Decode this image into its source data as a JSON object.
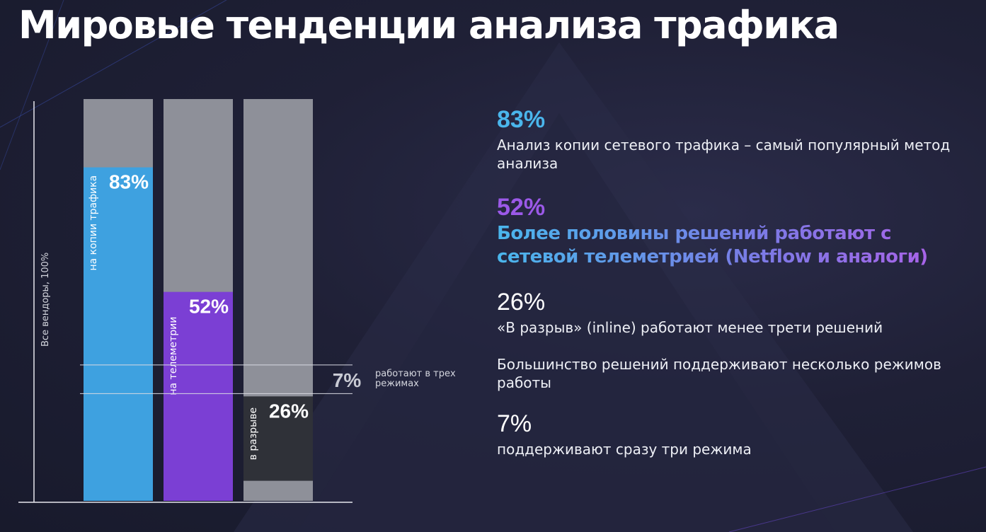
{
  "title": "Мировые тенденции анализа трафика",
  "colors": {
    "blue": "#3ea1e0",
    "purple": "#7b3fd4",
    "grey": "#8e9099",
    "dark_bar": "#2f3138",
    "accent_blue": "#4ab6ec",
    "accent_purple": "#9b59e8"
  },
  "chart_data": {
    "type": "bar",
    "ylabel": "Все вендоры, 100%",
    "ylim": [
      0,
      100
    ],
    "categories": [
      "на копии трафика",
      "на телеметрии",
      "в разрыве"
    ],
    "values": [
      83,
      52,
      26
    ],
    "value_labels": [
      "83%",
      "52%",
      "26%"
    ],
    "band": {
      "from": 26,
      "to": 34,
      "value": 7,
      "label": "7%",
      "annotation": "работают в трех режимах"
    }
  },
  "stats": [
    {
      "pct": "83%",
      "text": "Анализ копии сетевого трафика – самый популярный метод анализа"
    },
    {
      "pct": "52%",
      "text": "Более половины решений работают с сетевой телеметрией (Netflow и аналоги)"
    },
    {
      "pct": "26%",
      "text": "«В разрыв» (inline) работают менее трети решений"
    },
    {
      "pct": "",
      "text": "Большинство решений поддерживают несколько режимов работы"
    },
    {
      "pct": "7%",
      "text": "поддерживают сразу три режима"
    }
  ]
}
